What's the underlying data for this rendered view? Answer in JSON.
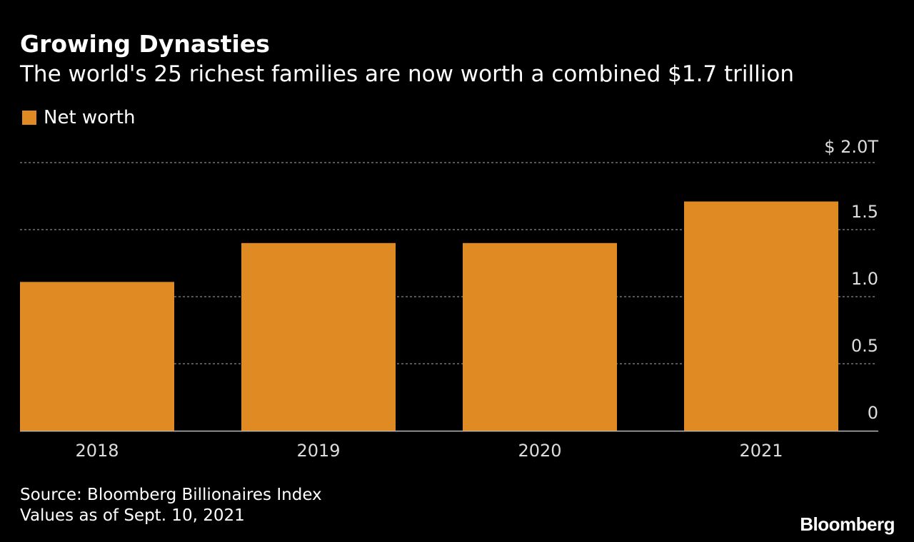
{
  "chart_data": {
    "type": "bar",
    "title": "Growing Dynasties",
    "subtitle": "The world's 25 richest families are now worth a combined $1.7 trillion",
    "xlabel": "",
    "ylabel": "",
    "categories": [
      "2018",
      "2019",
      "2020",
      "2021"
    ],
    "series": [
      {
        "name": "Net worth",
        "values": [
          1.11,
          1.4,
          1.4,
          1.71
        ]
      }
    ],
    "ylim": [
      0,
      2.0
    ],
    "y_ticks": [
      {
        "value": 2.0,
        "label": "$ 2.0T"
      },
      {
        "value": 1.5,
        "label": "1.5"
      },
      {
        "value": 1.0,
        "label": "1.0"
      },
      {
        "value": 0.5,
        "label": "0.5"
      },
      {
        "value": 0,
        "label": "0"
      }
    ],
    "y_axis_position": "right",
    "grid": true,
    "legend_position": "top-left",
    "colors": {
      "background": "#000000",
      "bar": "#E08A24",
      "text": "#FFFFFF",
      "tick_text": "#DDDDDD",
      "grid": "#8A8A8A",
      "baseline": "#BBBBBB"
    }
  },
  "footer": {
    "source": "Source: Bloomberg Billionaires Index",
    "note": "Values as of Sept. 10, 2021",
    "logo": "Bloomberg"
  }
}
